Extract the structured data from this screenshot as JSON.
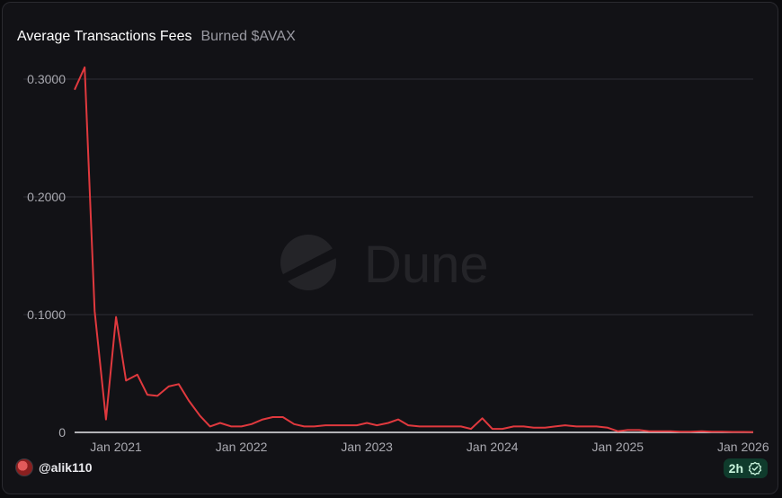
{
  "header": {
    "title": "Average Transactions Fees",
    "subtitle": "Burned $AVAX"
  },
  "watermark": {
    "text": "Dune"
  },
  "footer": {
    "username": "@alik110",
    "freshness": "2h"
  },
  "colors": {
    "line": "#e0393e",
    "grid": "#2f2f35",
    "background": "#121216"
  },
  "chart_data": {
    "type": "line",
    "title": "Average Transactions Fees",
    "subtitle": "Burned $AVAX",
    "xlabel": "",
    "ylabel": "",
    "y_ticks": [
      "0",
      "0.1000",
      "0.2000",
      "0.3000"
    ],
    "y_tick_values": [
      0,
      0.1,
      0.2,
      0.3
    ],
    "x_ticks": [
      "Jan 2021",
      "Jan 2022",
      "Jan 2023",
      "Jan 2024",
      "Jan 2025",
      "Jan 2026"
    ],
    "x_tick_values": [
      2021,
      2022,
      2023,
      2024,
      2025,
      2026
    ],
    "ylim": [
      0,
      0.3
    ],
    "xlim": [
      2020.67,
      2026.08
    ],
    "grid": true,
    "x": [
      2020.67,
      2020.75,
      2020.83,
      2020.92,
      2021.0,
      2021.08,
      2021.17,
      2021.25,
      2021.33,
      2021.42,
      2021.5,
      2021.58,
      2021.67,
      2021.75,
      2021.83,
      2021.92,
      2022.0,
      2022.08,
      2022.17,
      2022.25,
      2022.33,
      2022.42,
      2022.5,
      2022.58,
      2022.67,
      2022.75,
      2022.83,
      2022.92,
      2023.0,
      2023.08,
      2023.17,
      2023.25,
      2023.33,
      2023.42,
      2023.5,
      2023.58,
      2023.67,
      2023.75,
      2023.83,
      2023.92,
      2024.0,
      2024.08,
      2024.17,
      2024.25,
      2024.33,
      2024.42,
      2024.5,
      2024.58,
      2024.67,
      2024.75,
      2024.83,
      2024.92,
      2025.0,
      2025.08,
      2025.17,
      2025.25,
      2025.33,
      2025.42,
      2025.5,
      2025.58,
      2025.67,
      2025.75,
      2025.83,
      2025.92,
      2026.0,
      2026.08
    ],
    "series": [
      {
        "values": [
          0.291,
          0.31,
          0.103,
          0.011,
          0.098,
          0.044,
          0.049,
          0.032,
          0.031,
          0.039,
          0.041,
          0.027,
          0.014,
          0.005,
          0.008,
          0.005,
          0.005,
          0.007,
          0.011,
          0.013,
          0.013,
          0.007,
          0.005,
          0.005,
          0.006,
          0.006,
          0.006,
          0.006,
          0.008,
          0.006,
          0.008,
          0.011,
          0.006,
          0.005,
          0.005,
          0.005,
          0.005,
          0.005,
          0.003,
          0.012,
          0.003,
          0.003,
          0.005,
          0.005,
          0.004,
          0.004,
          0.005,
          0.006,
          0.005,
          0.005,
          0.005,
          0.004,
          0.001,
          0.002,
          0.002,
          0.001,
          0.001,
          0.001,
          0.0005,
          0.0005,
          0.001,
          0.0005,
          0.0005,
          0.0004,
          0.0004,
          0.0003
        ]
      }
    ]
  }
}
